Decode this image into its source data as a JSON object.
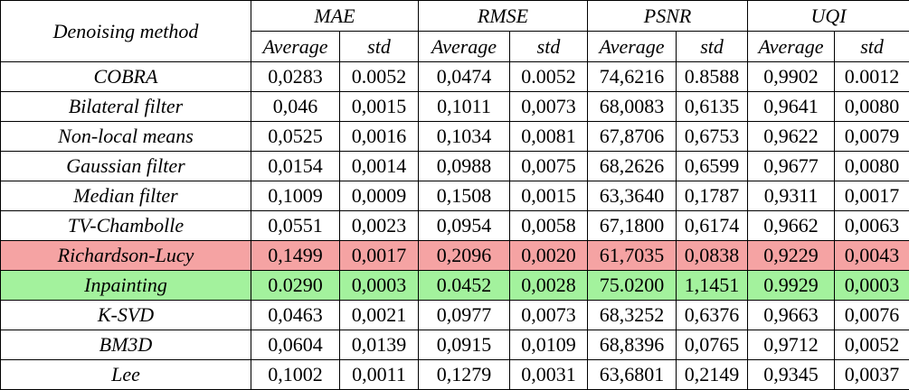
{
  "table": {
    "header": {
      "corner": "Denoising method",
      "groups": [
        "MAE",
        "RMSE",
        "PSNR",
        "UQI"
      ],
      "subheaders": [
        "Average",
        "std",
        "Average",
        "std",
        "Average",
        "std",
        "Average",
        "std"
      ]
    },
    "rows": [
      [
        "COBRA",
        "0,0283",
        "0.0052",
        "0,0474",
        "0.0052",
        "74,6216",
        "0.8588",
        "0,9902",
        "0.0012"
      ],
      [
        "Bilateral filter",
        "0,046",
        "0,0015",
        "0,1011",
        "0,0073",
        "68,0083",
        "0,6135",
        "0,9641",
        "0,0080"
      ],
      [
        "Non-local means",
        "0,0525",
        "0,0016",
        "0,1034",
        "0,0081",
        "67,8706",
        "0,6753",
        "0,9622",
        "0,0079"
      ],
      [
        "Gaussian filter",
        "0,0154",
        "0,0014",
        "0,0988",
        "0,0075",
        "68,2626",
        "0,6599",
        "0,9677",
        "0,0080"
      ],
      [
        "Median filter",
        "0,1009",
        "0,0009",
        "0,1508",
        "0,0015",
        "63,3640",
        "0,1787",
        "0,9311",
        "0,0017"
      ],
      [
        "TV-Chambolle",
        "0,0551",
        "0,0023",
        "0,0954",
        "0,0058",
        "67,1800",
        "0,6174",
        "0,9662",
        "0,0063"
      ],
      [
        "Richardson-Lucy",
        "0,1499",
        "0,0017",
        "0,2096",
        "0,0020",
        "61,7035",
        "0,0838",
        "0,9229",
        "0,0043"
      ],
      [
        "Inpainting",
        "0.0290",
        "0,0003",
        "0.0452",
        "0,0028",
        "75.0200",
        "1,1451",
        "0.9929",
        "0,0003"
      ],
      [
        "K-SVD",
        "0,0463",
        "0,0021",
        "0,0977",
        "0,0073",
        "68,3252",
        "0,6376",
        "0,9663",
        "0,0076"
      ],
      [
        "BM3D",
        "0,0604",
        "0,0139",
        "0,0915",
        "0,0109",
        "68,8396",
        "0,0765",
        "0,9712",
        "0,0052"
      ],
      [
        "Lee",
        "0,1002",
        "0,0011",
        "0,1279",
        "0,0031",
        "63,6801",
        "0,2149",
        "0,9345",
        "0,0037"
      ]
    ]
  }
}
